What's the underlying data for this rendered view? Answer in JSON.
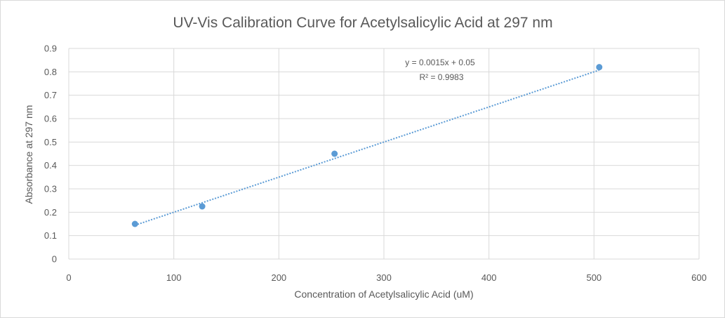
{
  "chart_data": {
    "type": "scatter",
    "title": "UV-Vis Calibration Curve for Acetylsalicylic Acid at 297 nm",
    "xlabel": "Concentration of Acetylsalicylic Acid (uM)",
    "ylabel": "Absorbance at 297 nm",
    "xlim": [
      0,
      600
    ],
    "ylim": [
      0,
      0.9
    ],
    "x_ticks": [
      "0",
      "100",
      "200",
      "300",
      "400",
      "500",
      "600"
    ],
    "y_ticks": [
      "0",
      "0.1",
      "0.2",
      "0.3",
      "0.4",
      "0.5",
      "0.6",
      "0.7",
      "0.8",
      "0.9"
    ],
    "grid": true,
    "series": [
      {
        "x": [
          63,
          127,
          253,
          505
        ],
        "y": [
          0.15,
          0.225,
          0.45,
          0.82
        ],
        "color": "#5b9bd5"
      }
    ],
    "trendline": {
      "type": "linear",
      "slope": 0.0015,
      "intercept": 0.05,
      "style": "dotted",
      "color": "#5b9bd5",
      "equation": "y = 0.0015x + 0.05",
      "r_squared": "R² = 0.9983"
    }
  }
}
